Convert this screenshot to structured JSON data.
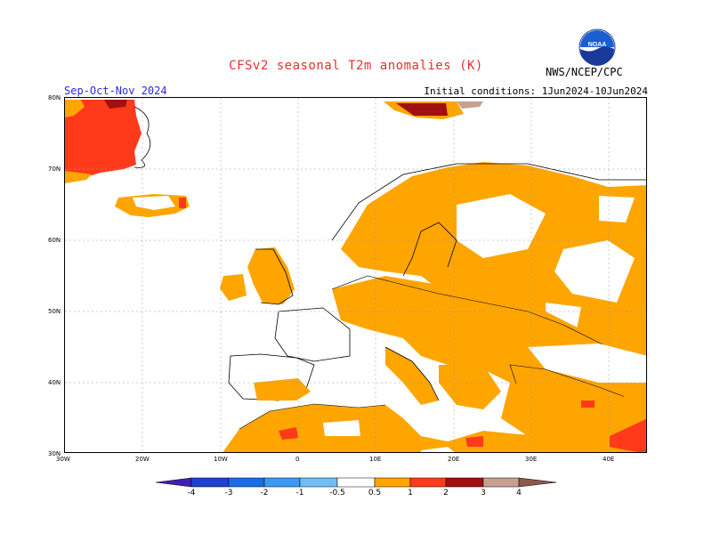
{
  "header": {
    "title": "CFSv2 seasonal T2m anomalies (K)",
    "season": "Sep-Oct-Nov 2024",
    "initial_conditions": "Initial conditions: 1Jun2024-10Jun2024",
    "agency": "NWS/NCEP/CPC",
    "logo_text": "NOAA"
  },
  "map": {
    "lat_labels": [
      "80N",
      "70N",
      "60N",
      "50N",
      "40N",
      "30N"
    ],
    "lon_labels": [
      "30W",
      "20W",
      "10W",
      "0",
      "10E",
      "20E",
      "30E",
      "40E"
    ],
    "lon_range": [
      -30,
      45
    ],
    "lat_range": [
      30,
      80
    ],
    "colors": {
      "land_anomaly_0_5_1": "#ffa500",
      "anomaly_1_2": "#ff3a1a",
      "anomaly_2_3": "#a01010",
      "anomaly_3_4": "#c8a090"
    }
  },
  "colorbar": {
    "labels": [
      "-4",
      "-3",
      "-2",
      "-1",
      "-0.5",
      "0.5",
      "1",
      "2",
      "3",
      "4"
    ],
    "colors": [
      "#4020b0",
      "#2040d0",
      "#1a6fe0",
      "#3a9af0",
      "#70bdf8",
      "#ffffff",
      "#ffa500",
      "#ff3a1a",
      "#a01010",
      "#c8a090",
      "#8b5a4a"
    ]
  }
}
